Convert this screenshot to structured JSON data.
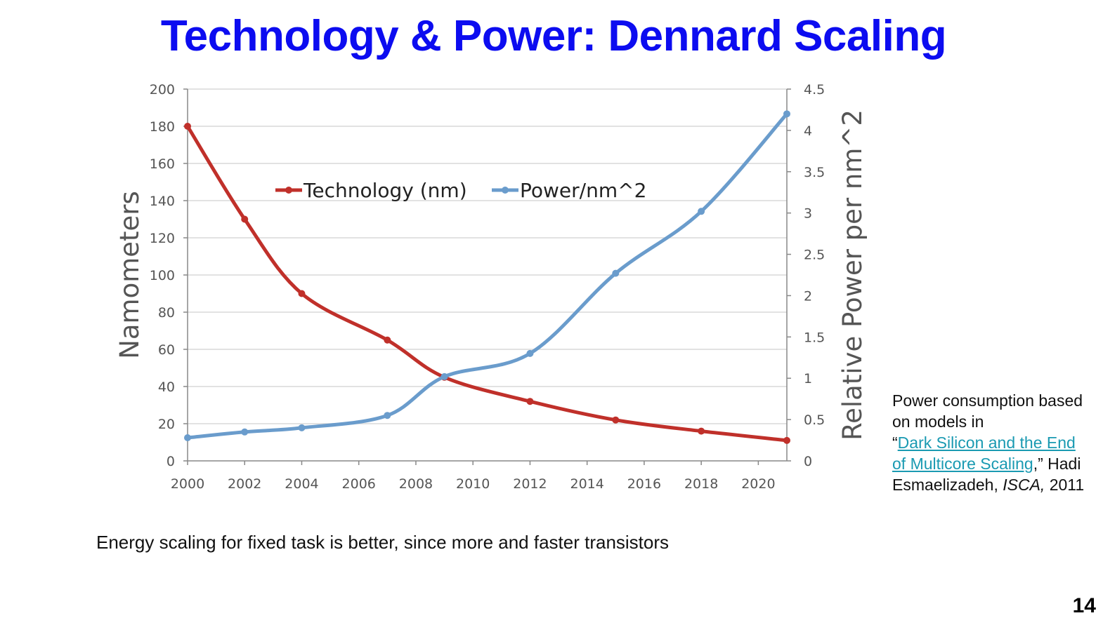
{
  "slide": {
    "title": "Technology & Power: Dennard Scaling",
    "caption": "Energy scaling for fixed task is better, since more and faster transistors",
    "page_number": "14"
  },
  "note": {
    "line1": "Power consumption based on models in",
    "open_quote": "“",
    "link_text": "Dark Silicon and the End of Multicore Scaling",
    "after_link": ",” Hadi Esmaelizadeh, ",
    "venue": "ISCA,",
    "year": " 2011",
    "link_color": "#1a9ab2"
  },
  "chart_data": {
    "type": "line",
    "x": [
      2000,
      2002,
      2004,
      2007,
      2009,
      2012,
      2015,
      2018,
      2021
    ],
    "x_ticks": [
      "2000",
      "2002",
      "2004",
      "2006",
      "2008",
      "2010",
      "2012",
      "2014",
      "2016",
      "2018",
      "2020"
    ],
    "xlim": [
      2000,
      2021
    ],
    "ylabel_left": "Namometers",
    "ylabel_right": "Relative  Power per nm^2",
    "ylim_left": [
      0,
      200
    ],
    "ylim_right": [
      0,
      4.5
    ],
    "left_ticks": [
      "0",
      "20",
      "40",
      "60",
      "80",
      "100",
      "120",
      "140",
      "160",
      "180",
      "200"
    ],
    "right_ticks": [
      "0",
      "0.5",
      "1",
      "1.5",
      "2",
      "2.5",
      "3",
      "3.5",
      "4",
      "4.5"
    ],
    "grid": true,
    "legend_position": "top-center",
    "series": [
      {
        "name": "Technology (nm)",
        "axis": "left",
        "color": "#c0302a",
        "values": [
          180,
          130,
          90,
          65,
          45,
          32,
          22,
          16,
          11
        ]
      },
      {
        "name": "Power/nm^2",
        "axis": "right",
        "color": "#6a9ccc",
        "values": [
          0.28,
          0.35,
          0.4,
          0.55,
          1.02,
          1.3,
          2.27,
          3.02,
          4.2
        ]
      }
    ]
  }
}
